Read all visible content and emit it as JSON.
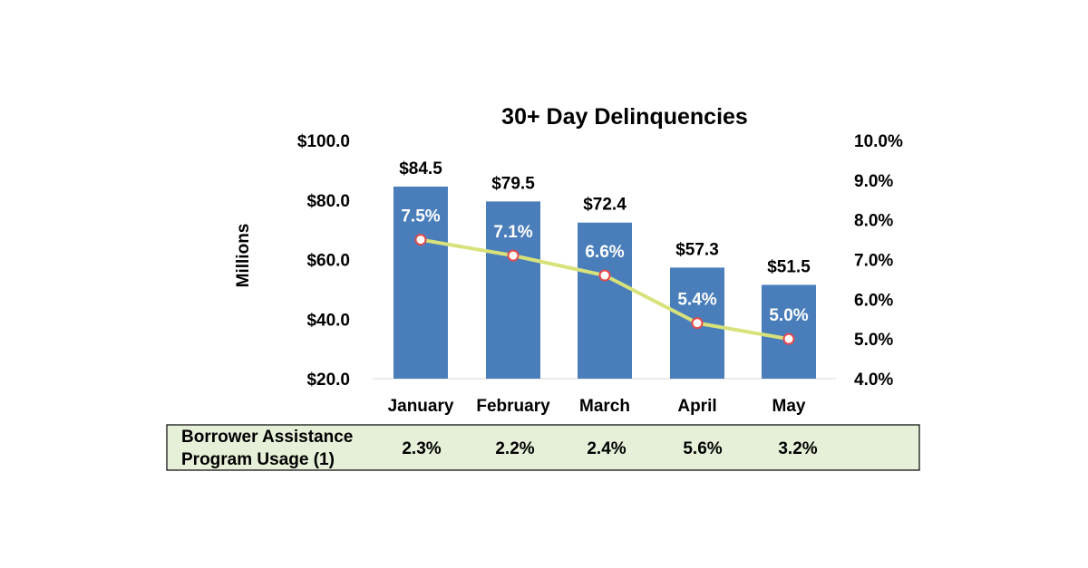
{
  "chart_data": {
    "type": "bar",
    "title": "30+ Day Delinquencies",
    "categories": [
      "January",
      "February",
      "March",
      "April",
      "May"
    ],
    "ylabel": "Millions",
    "ylim": [
      20,
      100
    ],
    "y_ticks": [
      "$20.0",
      "$40.0",
      "$60.0",
      "$80.0",
      "$100.0"
    ],
    "y2lim": [
      4.0,
      10.0
    ],
    "y2_ticks": [
      "4.0%",
      "5.0%",
      "6.0%",
      "7.0%",
      "8.0%",
      "9.0%",
      "10.0%"
    ],
    "series": [
      {
        "name": "30+ Day Delinquencies ($M)",
        "type": "bar",
        "axis": "left",
        "values": [
          84.5,
          79.5,
          72.4,
          57.3,
          51.5
        ],
        "labels": [
          "$84.5",
          "$79.5",
          "$72.4",
          "$57.3",
          "$51.5"
        ],
        "color": "#4a7ebb"
      },
      {
        "name": "Delinquency Rate",
        "type": "line",
        "axis": "right",
        "values": [
          7.5,
          7.1,
          6.6,
          5.4,
          5.0
        ],
        "labels": [
          "7.5%",
          "7.1%",
          "6.6%",
          "5.4%",
          "5.0%"
        ],
        "color": "#d8e27a",
        "marker_edge_color": "#e8484a"
      }
    ],
    "grid": false
  },
  "bap_table": {
    "title_line1": "Borrower Assistance",
    "title_line2": "Program Usage (1)",
    "values": [
      "2.3%",
      "2.2%",
      "2.4%",
      "5.6%",
      "3.2%"
    ],
    "background": "#e6f0d9"
  }
}
